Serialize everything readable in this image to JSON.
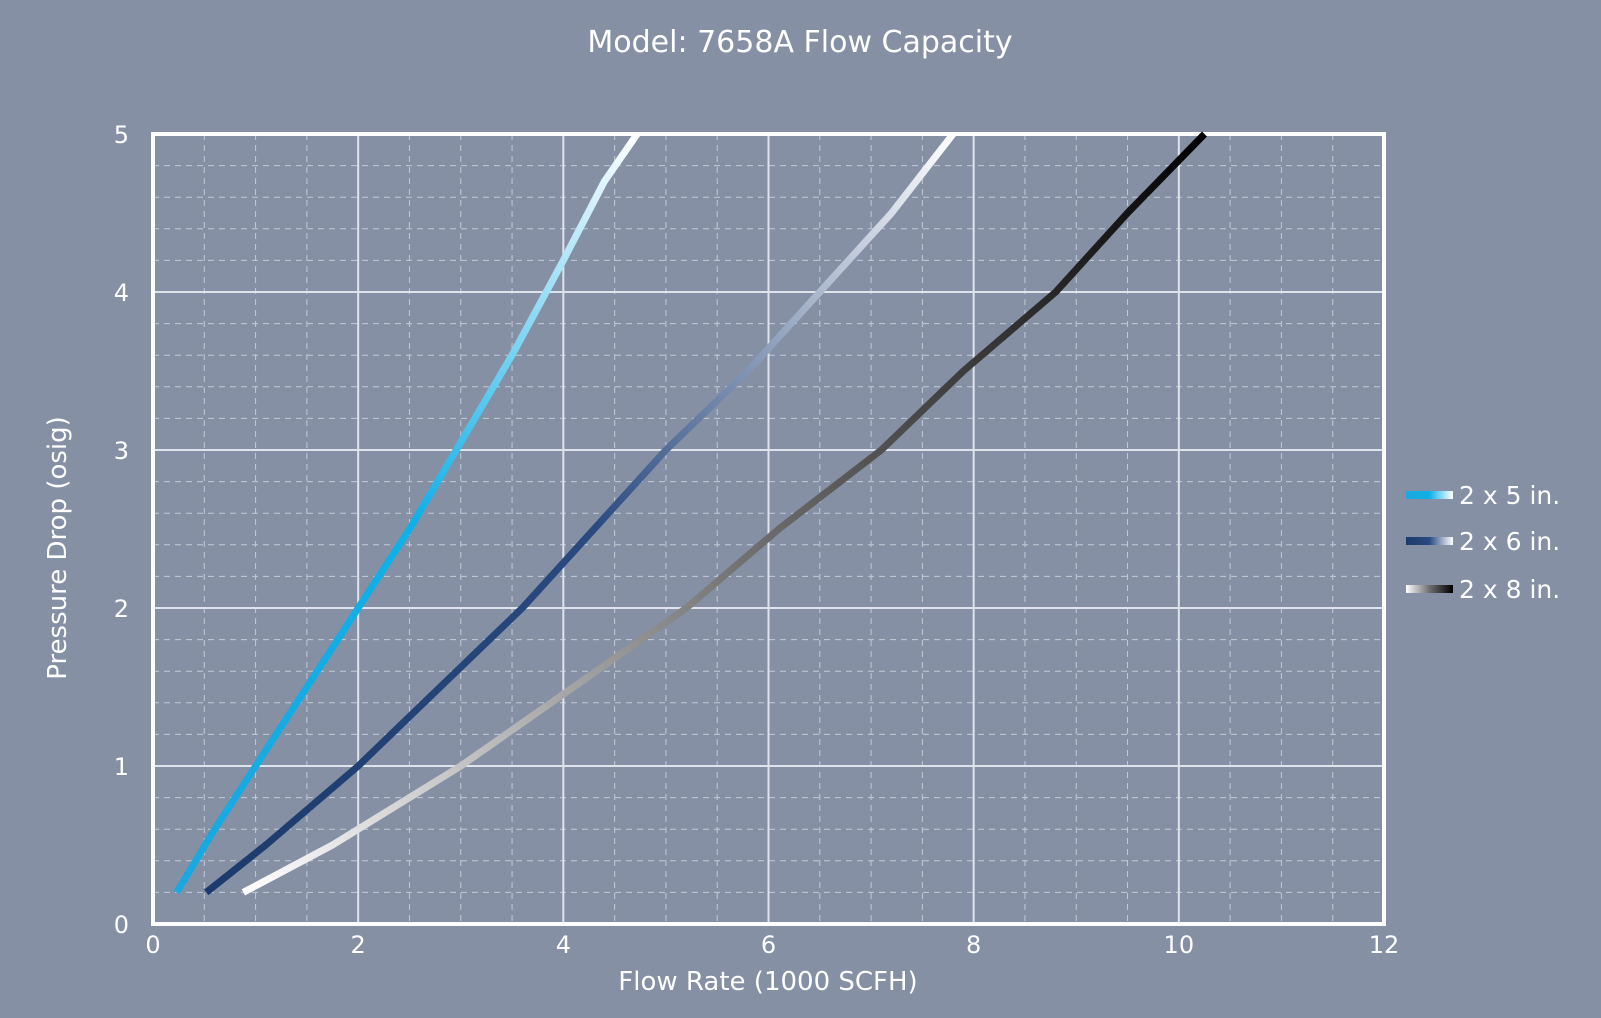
{
  "chart_data": {
    "type": "line",
    "title": "Model: 7658A Flow Capacity",
    "xlabel": "Flow Rate (1000 SCFH)",
    "ylabel": "Pressure Drop (osig)",
    "xlim": [
      0,
      12
    ],
    "ylim": [
      0,
      5
    ],
    "xticks": [
      0,
      2,
      4,
      6,
      8,
      10,
      12
    ],
    "yticks": [
      0,
      1,
      2,
      3,
      4,
      5
    ],
    "grid": true,
    "legend_position": "right",
    "background_color": "#8590a5",
    "series": [
      {
        "name": "2 x 5 in.",
        "colors": [
          "#1aa8e0",
          "#0fb0e8",
          "#ffffff"
        ],
        "points": [
          [
            0.23,
            0.2
          ],
          [
            0.6,
            0.6
          ],
          [
            1.0,
            1.0
          ],
          [
            1.5,
            1.5
          ],
          [
            2.0,
            2.0
          ],
          [
            2.5,
            2.5
          ],
          [
            3.0,
            3.05
          ],
          [
            3.5,
            3.6
          ],
          [
            4.0,
            4.2
          ],
          [
            4.4,
            4.7
          ],
          [
            4.72,
            5.0
          ]
        ]
      },
      {
        "name": "2 x 6 in.",
        "colors": [
          "#1c3a6b",
          "#2a4a80",
          "#ffffff"
        ],
        "points": [
          [
            0.52,
            0.2
          ],
          [
            1.1,
            0.5
          ],
          [
            2.0,
            1.0
          ],
          [
            2.8,
            1.5
          ],
          [
            3.6,
            2.0
          ],
          [
            4.3,
            2.5
          ],
          [
            5.0,
            3.0
          ],
          [
            5.8,
            3.5
          ],
          [
            6.5,
            4.0
          ],
          [
            7.2,
            4.5
          ],
          [
            7.8,
            5.0
          ]
        ]
      },
      {
        "name": "2 x 8 in.",
        "colors": [
          "#ffffff",
          "#6e6e6e",
          "#000000"
        ],
        "points": [
          [
            0.88,
            0.2
          ],
          [
            1.75,
            0.5
          ],
          [
            3.0,
            1.0
          ],
          [
            4.1,
            1.5
          ],
          [
            5.2,
            2.0
          ],
          [
            6.1,
            2.5
          ],
          [
            7.1,
            3.0
          ],
          [
            7.9,
            3.5
          ],
          [
            8.8,
            4.0
          ],
          [
            9.5,
            4.5
          ],
          [
            10.25,
            5.0
          ]
        ]
      }
    ]
  }
}
